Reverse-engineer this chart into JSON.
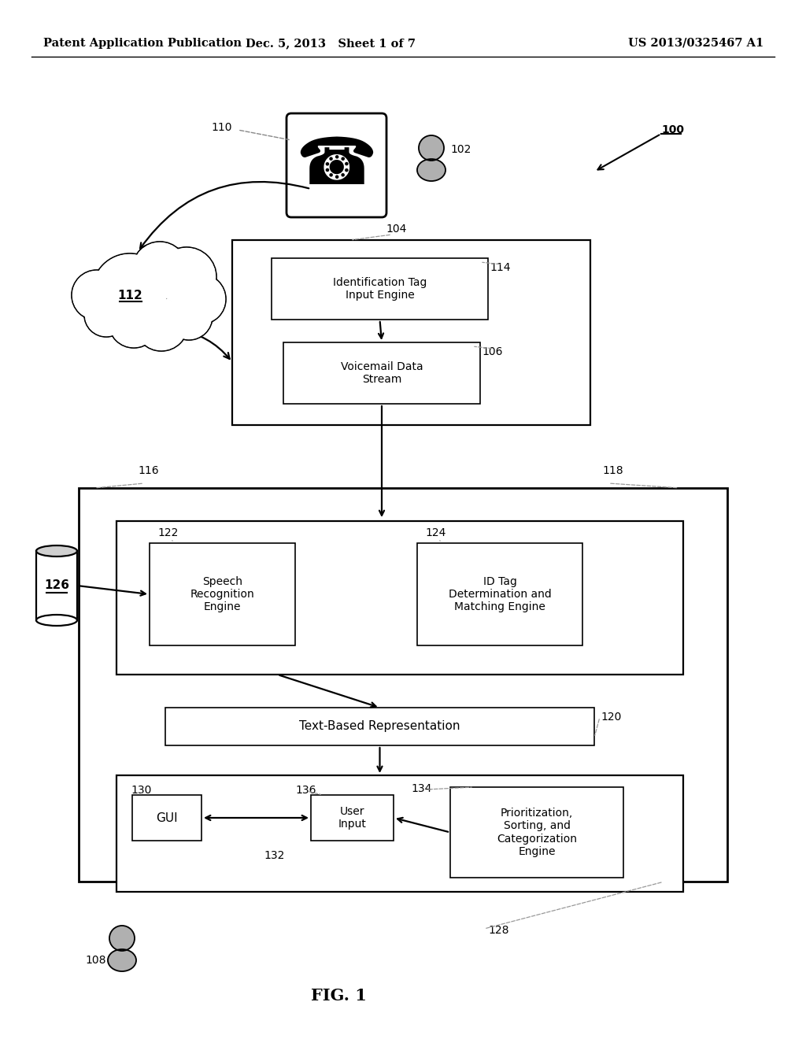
{
  "bg_color": "#ffffff",
  "header_left": "Patent Application Publication",
  "header_mid": "Dec. 5, 2013   Sheet 1 of 7",
  "header_right": "US 2013/0325467 A1",
  "fig_label": "FIG. 1",
  "ref_100": "100",
  "ref_102": "102",
  "ref_104": "104",
  "ref_106": "106",
  "ref_108": "108",
  "ref_110": "110",
  "ref_112": "112",
  "ref_114": "114",
  "ref_116": "116",
  "ref_118": "118",
  "ref_120": "120",
  "ref_122": "122",
  "ref_124": "124",
  "ref_126": "126",
  "ref_128": "128",
  "ref_130": "130",
  "ref_132": "132",
  "ref_134": "134",
  "ref_136": "136",
  "box_114_label": "Identification Tag\nInput Engine",
  "box_106_label": "Voicemail Data\nStream",
  "box_122_label": "Speech\nRecognition\nEngine",
  "box_124_label": "ID Tag\nDetermination and\nMatching Engine",
  "box_120_label": "Text-Based Representation",
  "box_130_label": "GUI",
  "box_136_label": "User\nInput",
  "box_prio_label": "Prioritization,\nSorting, and\nCategorization\nEngine",
  "lw_thin": 1.2,
  "lw_med": 1.6,
  "lw_thick": 2.0
}
